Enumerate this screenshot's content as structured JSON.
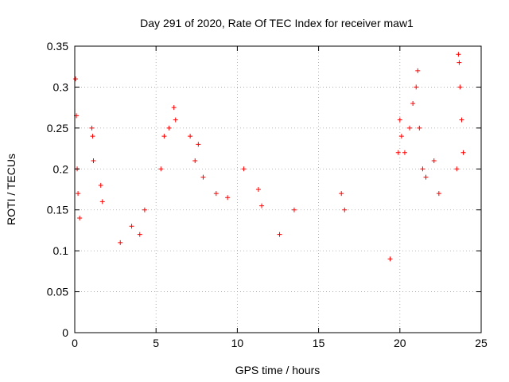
{
  "chart_data": {
    "type": "scatter",
    "title": "Day 291 of 2020, Rate Of TEC Index for receiver maw1",
    "xlabel": "GPS time / hours",
    "ylabel": "ROTI / TECUs",
    "xlim": [
      0,
      25
    ],
    "ylim": [
      0,
      0.35
    ],
    "x_ticks": [
      "0",
      "5",
      "10",
      "15",
      "20",
      "25"
    ],
    "y_ticks": [
      "0",
      "0.05",
      "0.1",
      "0.15",
      "0.2",
      "0.25",
      "0.3",
      "0.35"
    ],
    "grid": true,
    "legend": "none",
    "marker": "plus",
    "color": "#ff0000",
    "series": [
      {
        "x": [
          0.05,
          0.1,
          0.15,
          0.2,
          0.3,
          1.05,
          1.1,
          1.15,
          1.6,
          1.7,
          2.8,
          3.5,
          4.0,
          4.3,
          5.3,
          5.5,
          5.8,
          6.1,
          6.2,
          7.1,
          7.4,
          7.6,
          7.9,
          8.7,
          9.4,
          10.4,
          11.3,
          11.5,
          12.6,
          13.5,
          16.4,
          16.6,
          19.4,
          19.9,
          20.0,
          20.1,
          20.3,
          20.6,
          20.8,
          21.0,
          21.1,
          21.2,
          21.4,
          21.6,
          22.1,
          22.4,
          23.5,
          23.6,
          23.65,
          23.7,
          23.8,
          23.9
        ],
        "y": [
          0.31,
          0.265,
          0.2,
          0.17,
          0.14,
          0.25,
          0.24,
          0.21,
          0.18,
          0.16,
          0.11,
          0.13,
          0.12,
          0.15,
          0.2,
          0.24,
          0.25,
          0.275,
          0.26,
          0.24,
          0.21,
          0.23,
          0.19,
          0.17,
          0.165,
          0.2,
          0.175,
          0.155,
          0.12,
          0.15,
          0.17,
          0.15,
          0.09,
          0.22,
          0.26,
          0.24,
          0.22,
          0.25,
          0.28,
          0.3,
          0.32,
          0.25,
          0.2,
          0.19,
          0.21,
          0.17,
          0.2,
          0.34,
          0.33,
          0.3,
          0.26,
          0.22
        ]
      }
    ]
  }
}
